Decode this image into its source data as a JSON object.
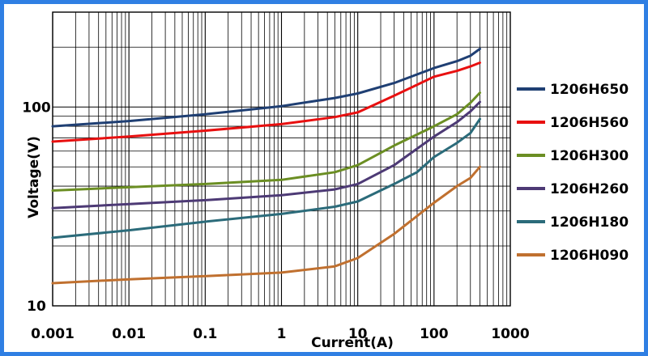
{
  "chart_data": {
    "type": "line",
    "xlabel": "Current(A)",
    "ylabel": "Voltage(V)",
    "xscale": "log",
    "yscale": "log",
    "xlim": [
      0.001,
      1000
    ],
    "ylim": [
      10,
      300
    ],
    "grid": true,
    "legend_position": "right",
    "x_tick_labels": [
      "0.001",
      "0.01",
      "0.1",
      "1",
      "10",
      "100",
      "1000"
    ],
    "y_tick_labels": [
      "10",
      "100"
    ],
    "series": [
      {
        "name": "1206H650",
        "color": "#1f3f73",
        "points": [
          [
            0.001,
            80
          ],
          [
            0.01,
            85
          ],
          [
            0.1,
            92
          ],
          [
            1,
            101
          ],
          [
            5,
            111
          ],
          [
            10,
            117
          ],
          [
            30,
            132
          ],
          [
            100,
            157
          ],
          [
            200,
            170
          ],
          [
            300,
            181
          ],
          [
            400,
            196
          ]
        ]
      },
      {
        "name": "1206H560",
        "color": "#e81010",
        "points": [
          [
            0.001,
            67
          ],
          [
            0.01,
            71
          ],
          [
            0.1,
            76
          ],
          [
            1,
            82
          ],
          [
            5,
            89
          ],
          [
            10,
            94
          ],
          [
            30,
            114
          ],
          [
            100,
            142
          ],
          [
            200,
            152
          ],
          [
            300,
            160
          ],
          [
            400,
            167
          ]
        ]
      },
      {
        "name": "1206H300",
        "color": "#6b8e23",
        "points": [
          [
            0.001,
            38
          ],
          [
            0.01,
            39.5
          ],
          [
            0.1,
            41
          ],
          [
            1,
            43
          ],
          [
            5,
            47
          ],
          [
            10,
            51
          ],
          [
            30,
            64
          ],
          [
            100,
            80
          ],
          [
            200,
            92
          ],
          [
            300,
            105
          ],
          [
            400,
            118
          ]
        ]
      },
      {
        "name": "1206H260",
        "color": "#4d3a75",
        "points": [
          [
            0.001,
            31
          ],
          [
            0.01,
            32.5
          ],
          [
            0.1,
            34
          ],
          [
            1,
            36
          ],
          [
            5,
            38.5
          ],
          [
            10,
            41
          ],
          [
            30,
            51
          ],
          [
            100,
            71
          ],
          [
            200,
            84
          ],
          [
            300,
            95
          ],
          [
            400,
            106
          ]
        ]
      },
      {
        "name": "1206H180",
        "color": "#2b6b7a",
        "points": [
          [
            0.001,
            22
          ],
          [
            0.01,
            24
          ],
          [
            0.1,
            26.5
          ],
          [
            1,
            29
          ],
          [
            5,
            31.5
          ],
          [
            10,
            33.5
          ],
          [
            30,
            41
          ],
          [
            60,
            47
          ],
          [
            100,
            56
          ],
          [
            200,
            66
          ],
          [
            300,
            74
          ],
          [
            400,
            87
          ]
        ]
      },
      {
        "name": "1206H090",
        "color": "#c0702f",
        "points": [
          [
            0.001,
            13
          ],
          [
            0.01,
            13.6
          ],
          [
            0.1,
            14.1
          ],
          [
            1,
            14.7
          ],
          [
            5,
            15.8
          ],
          [
            10,
            17.4
          ],
          [
            30,
            23
          ],
          [
            100,
            33
          ],
          [
            200,
            40
          ],
          [
            300,
            44
          ],
          [
            400,
            50
          ]
        ]
      }
    ]
  }
}
